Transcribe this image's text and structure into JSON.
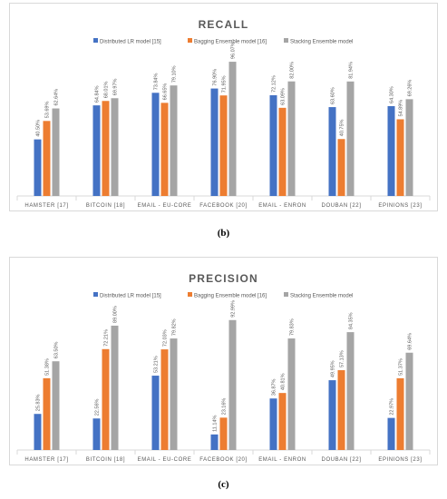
{
  "chart_data": [
    {
      "type": "bar",
      "title": "RECALL",
      "categories": [
        "HAMSTER [17]",
        "BITCOIN [18]",
        "EMAIL - EU-CORE [19]",
        "FACEBOOK [20]",
        "EMAIL - ENRON [21]",
        "DOUBAN [22]",
        "EPINIONS [23]"
      ],
      "series": [
        {
          "name": "Distributed LR model [15]",
          "values": [
            40.5,
            64.84,
            73.84,
            76.9,
            72.12,
            63.6,
            64.3
          ],
          "labels": [
            "40.50%",
            "64.84%",
            "73.84%",
            "76.90%",
            "72.12%",
            "63.60%",
            "64.30%"
          ]
        },
        {
          "name": "Bagging Ensemble model [16]",
          "values": [
            53.69,
            68.01,
            66.65,
            71.95,
            63.09,
            40.75,
            54.89
          ],
          "labels": [
            "53.69%",
            "68.01%",
            "66.65%",
            "71.95%",
            "63.09%",
            "40.75%",
            "54.89%"
          ]
        },
        {
          "name": "Stacking Ensemble model",
          "values": [
            62.64,
            69.97,
            79.1,
            96.07,
            82.0,
            81.94,
            69.26
          ],
          "labels": [
            "62.64%",
            "69.97%",
            "79.10%",
            "96.07%",
            "82.00%",
            "81.94%",
            "69.26%"
          ]
        }
      ],
      "ylim": [
        0,
        100
      ],
      "grid": false,
      "legend": "top"
    },
    {
      "type": "bar",
      "title": "PRECISION",
      "categories": [
        "HAMSTER [17]",
        "BITCOIN [18]",
        "EMAIL - EU-CORE [19]",
        "FACEBOOK [20]",
        "EMAIL - ENRON [21]",
        "DOUBAN [22]",
        "EPINIONS [23]"
      ],
      "series": [
        {
          "name": "Distributed LR model [15]",
          "values": [
            25.83,
            22.56,
            53.21,
            11.14,
            36.87,
            49.95,
            22.97
          ],
          "labels": [
            "25.83%",
            "22.56%",
            "53.21%",
            "11.14%",
            "36.87%",
            "49.95%",
            "22.97%"
          ]
        },
        {
          "name": "Bagging Ensemble model [16]",
          "values": [
            51.38,
            72.21,
            72.03,
            23.16,
            40.81,
            57.13,
            51.37
          ],
          "labels": [
            "51.38%",
            "72.21%",
            "72.03%",
            "23.16%",
            "40.81%",
            "57.13%",
            "51.37%"
          ]
        },
        {
          "name": "Stacking Ensemble model",
          "values": [
            63.5,
            89.0,
            79.82,
            92.99,
            79.83,
            84.35,
            69.64
          ],
          "labels": [
            "63.50%",
            "89.00%",
            "79.82%",
            "92.99%",
            "79.83%",
            "84.35%",
            "69.64%"
          ]
        }
      ],
      "ylim": [
        0,
        100
      ],
      "grid": false,
      "legend": "top"
    }
  ],
  "captions": [
    "(b)",
    "(c)"
  ],
  "colors": {
    "series": [
      "#4472c4",
      "#ed7d31",
      "#a5a5a5"
    ],
    "axis": "#d9d9d9",
    "title": "#595959",
    "text": "#595959"
  }
}
